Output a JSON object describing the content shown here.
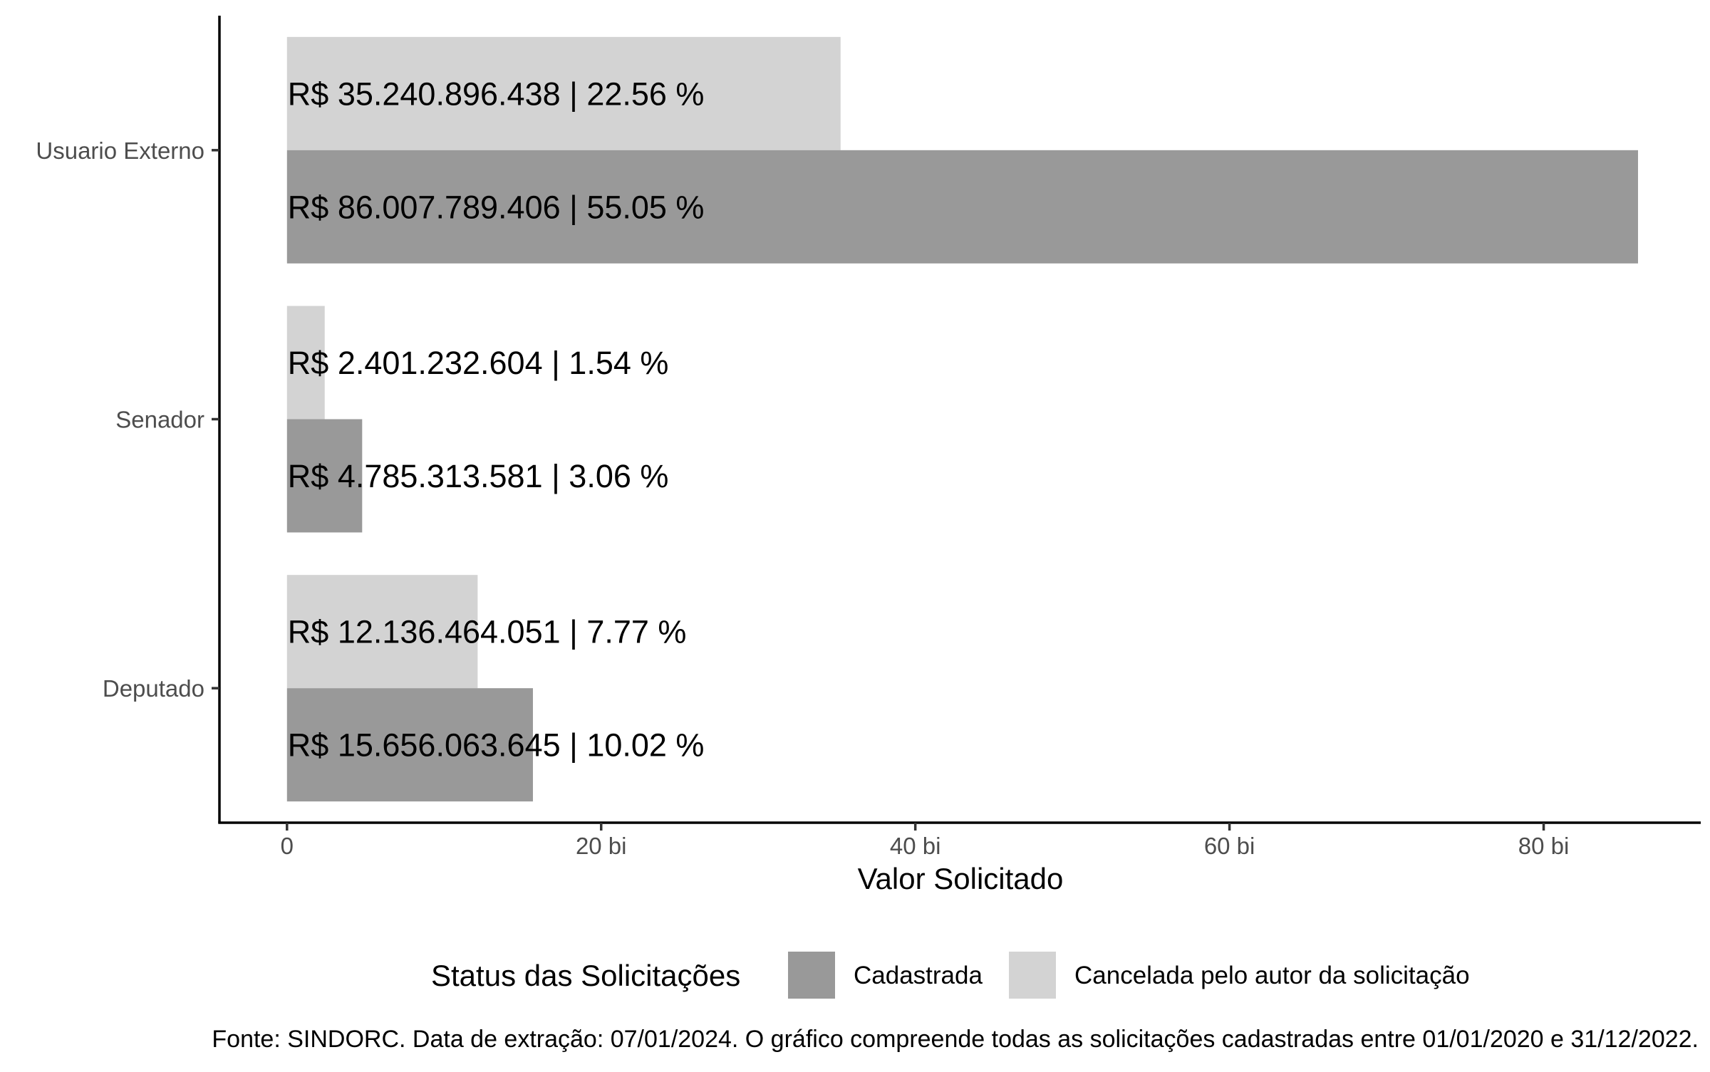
{
  "chart_data": {
    "type": "bar",
    "orientation": "horizontal",
    "categories": [
      "Usuario Externo",
      "Senador",
      "Deputado"
    ],
    "series": [
      {
        "name": "Cancelada pelo autor da solicitação",
        "color": "#d3d3d3",
        "values": [
          35240896438,
          2401232604,
          12136464051
        ],
        "labels": [
          "R$ 35.240.896.438 | 22.56 %",
          "R$ 2.401.232.604 | 1.54 %",
          "R$ 12.136.464.051 | 7.77 %"
        ]
      },
      {
        "name": "Cadastrada",
        "color": "#999999",
        "values": [
          86007789406,
          4785313581,
          15656063645
        ],
        "labels": [
          "R$ 86.007.789.406 | 55.05 %",
          "R$ 4.785.313.581 | 3.06 %",
          "R$ 15.656.063.645 | 10.02 %"
        ]
      }
    ],
    "xlabel": "Valor Solicitado",
    "ylabel": "",
    "xlim": [
      -4300000000,
      90000000000
    ],
    "xticks": [
      0,
      20000000000,
      40000000000,
      60000000000,
      80000000000
    ],
    "xtick_labels": [
      "0",
      "20 bi",
      "40 bi",
      "60 bi",
      "80 bi"
    ],
    "grid": false,
    "legend": {
      "title": "Status das Solicitações",
      "position": "bottom",
      "items": [
        "Cadastrada",
        "Cancelada pelo autor da solicitação"
      ]
    },
    "caption": "Fonte: SINDORC. Data de extração: 07/01/2024. O gráfico compreende todas as solicitações cadastradas entre 01/01/2020 e 31/12/2022."
  }
}
